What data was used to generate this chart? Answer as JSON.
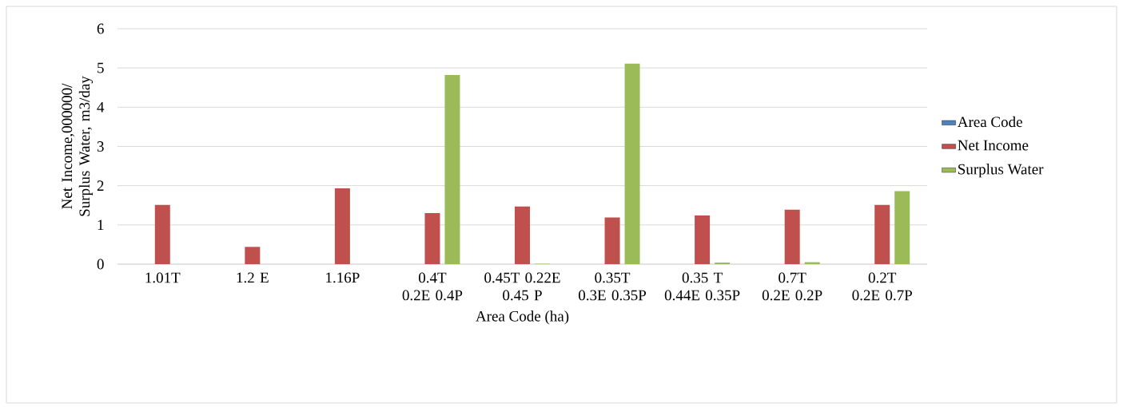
{
  "chart_data": {
    "type": "bar",
    "xlabel": "Area Code (ha)",
    "ylabel": "Net Income,000000/ Surplus Water, m3/day",
    "categories": [
      "1.01T",
      "1.2 E",
      "1.16P",
      "0.4T 0.2E 0.4P",
      "0.45T 0.22E 0.45 P",
      "0.35T 0.3E 0.35P",
      "0.35 T 0.44E 0.35P",
      "0.7T 0.2E 0.2P",
      "0.2T 0.2E 0.7P"
    ],
    "series": [
      {
        "name": "Area Code",
        "color": "#4f81bd",
        "values": [
          null,
          null,
          null,
          null,
          null,
          null,
          null,
          null,
          null
        ]
      },
      {
        "name": "Net Income",
        "color": "#c0504d",
        "values": [
          1.51,
          0.44,
          1.93,
          1.3,
          1.47,
          1.19,
          1.24,
          1.39,
          1.51
        ]
      },
      {
        "name": "Surplus Water",
        "color": "#9bbb59",
        "values": [
          null,
          null,
          null,
          4.82,
          0.01,
          5.11,
          0.04,
          0.05,
          1.86
        ]
      }
    ],
    "ylim": [
      0,
      6
    ],
    "yticks": [
      0,
      1,
      2,
      3,
      4,
      5,
      6
    ],
    "grid": "y",
    "legend": "right"
  }
}
